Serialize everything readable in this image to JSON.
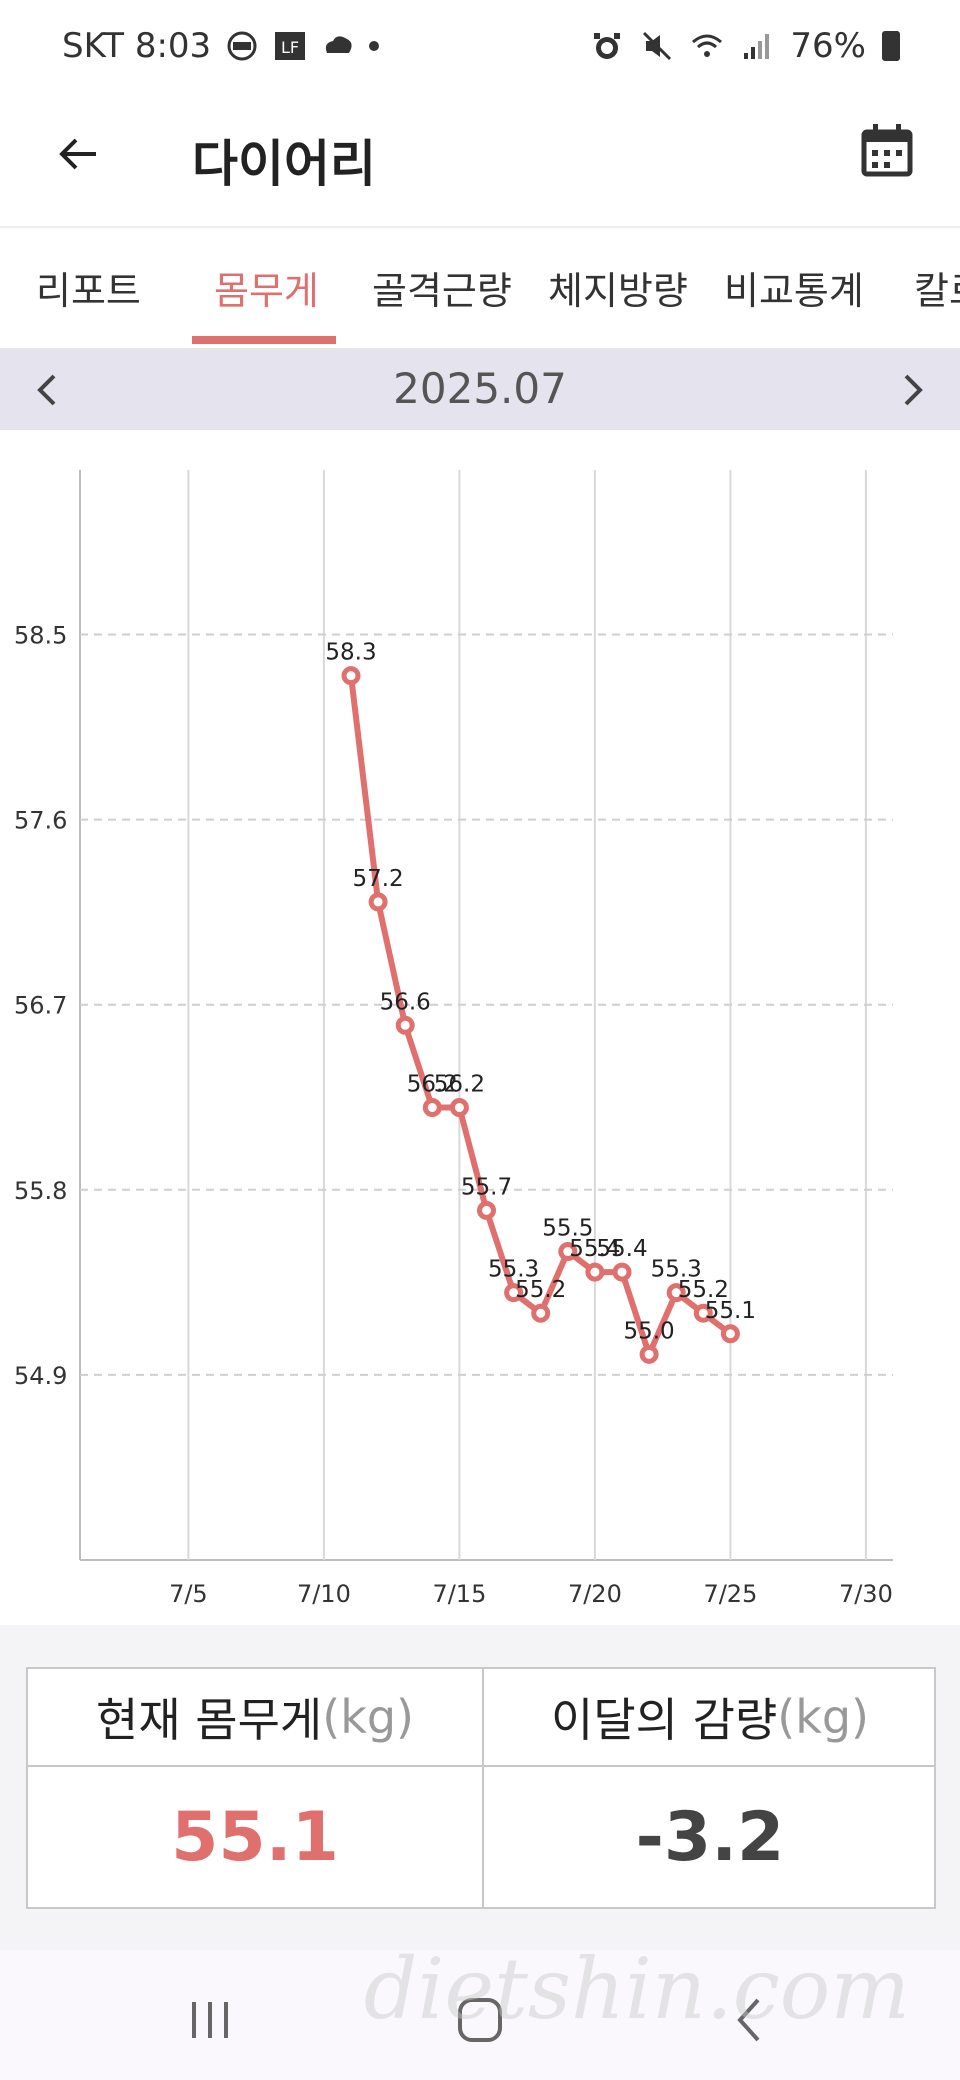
{
  "status_bar": {
    "carrier_time": "SKT 8:03",
    "battery": "76%",
    "icons_left": [
      "dash-icon",
      "lf-icon",
      "cloud-icon",
      "dot-icon"
    ],
    "icons_right": [
      "alarm-icon",
      "mute-icon",
      "wifi-icon",
      "signal-icon",
      "battery-icon"
    ]
  },
  "app_bar": {
    "title": "다이어리",
    "back_icon": "arrow-left-icon",
    "calendar_icon": "calendar-icon"
  },
  "tabs": [
    "리포트",
    "몸무게",
    "골격근량",
    "체지방량",
    "비교통계",
    "칼로"
  ],
  "active_tab_index": 1,
  "month_nav": {
    "label": "2025.07",
    "prev_icon": "chevron-left-icon",
    "next_icon": "chevron-right-icon"
  },
  "chart_data": {
    "type": "line",
    "title": "",
    "xlabel": "",
    "ylabel": "",
    "x_ticks": [
      "7/5",
      "7/10",
      "7/15",
      "7/20",
      "7/25",
      "7/30"
    ],
    "y_ticks": [
      "58.5",
      "57.6",
      "56.7",
      "55.8",
      "54.9"
    ],
    "ylim": [
      54.0,
      59.3
    ],
    "xlim_days": [
      1,
      31
    ],
    "grid": true,
    "line_color": "#e0706e",
    "series": [
      {
        "name": "",
        "points": [
          {
            "day": 11,
            "value": 58.3,
            "label": "58.3"
          },
          {
            "day": 12,
            "value": 57.2,
            "label": "57.2"
          },
          {
            "day": 13,
            "value": 56.6,
            "label": "56.6"
          },
          {
            "day": 14,
            "value": 56.2,
            "label": "56.2"
          },
          {
            "day": 15,
            "value": 56.2,
            "label": "56.2"
          },
          {
            "day": 16,
            "value": 55.7,
            "label": "55.7"
          },
          {
            "day": 17,
            "value": 55.3,
            "label": "55.3"
          },
          {
            "day": 18,
            "value": 55.2,
            "label": "55.2"
          },
          {
            "day": 19,
            "value": 55.5,
            "label": "55.5"
          },
          {
            "day": 20,
            "value": 55.4,
            "label": "55.4"
          },
          {
            "day": 21,
            "value": 55.4,
            "label": "55.4"
          },
          {
            "day": 22,
            "value": 55.0,
            "label": "55.0"
          },
          {
            "day": 23,
            "value": 55.3,
            "label": "55.3"
          },
          {
            "day": 24,
            "value": 55.2,
            "label": "55.2"
          },
          {
            "day": 25,
            "value": 55.1,
            "label": "55.1"
          }
        ]
      }
    ]
  },
  "summary": {
    "current_label": "현재 몸무게",
    "current_unit": "(kg)",
    "current_value": "55.1",
    "loss_label": "이달의 감량",
    "loss_unit": "(kg)",
    "loss_value": "-3.2",
    "current_color": "#e0706e"
  },
  "nav_bar": {
    "icons": [
      "recent-apps-icon",
      "home-icon",
      "back-icon"
    ]
  },
  "watermark": "dietshin.com"
}
